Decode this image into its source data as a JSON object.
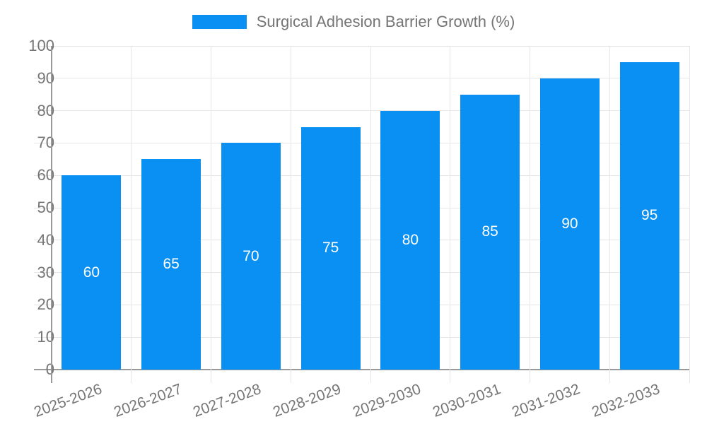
{
  "chart_data": {
    "type": "bar",
    "title": "Surgical Adhesion Barrier Growth (%)",
    "categories": [
      "2025-2026",
      "2026-2027",
      "2027-2028",
      "2028-2029",
      "2029-2030",
      "2030-2031",
      "2031-2032",
      "2032-2033"
    ],
    "values": [
      60,
      65,
      70,
      75,
      80,
      85,
      90,
      95
    ],
    "xlabel": "",
    "ylabel": "",
    "ylim": [
      0,
      100
    ],
    "ytick_step": 10,
    "ytick_labels": [
      "0",
      "10",
      "20",
      "30",
      "40",
      "50",
      "60",
      "70",
      "80",
      "90",
      "100"
    ],
    "grid": true,
    "legend_position": "top-center",
    "bar_labels_shown": true,
    "bar_label_position": "center-inside"
  },
  "colors": {
    "bar": "#0a90f2",
    "grid": "#e6e6e6",
    "axis": "#999999",
    "tick_text": "#757575",
    "bar_label_text": "#ffffff",
    "background": "#ffffff"
  }
}
